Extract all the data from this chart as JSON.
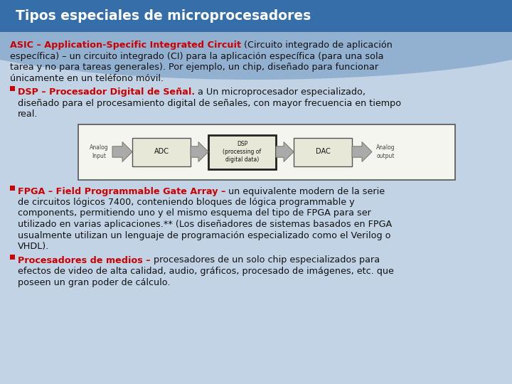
{
  "title": "Tipos especiales de microprocesadores",
  "title_bg": "#1b5ea7",
  "body_bg": "#ccdaea",
  "wave_color": "#5b8fc4",
  "text_dark": "#111111",
  "text_red": "#cc0000",
  "fs_title": 13.5,
  "fs_body": 9.2,
  "fs_diag": 7.0,
  "p1_bold": "ASIC – Application-Specific Integrated Circuit",
  "p1_lines": [
    [
      "b",
      "ASIC – Application-Specific Integrated Circuit",
      " (Circuito integrado de aplicación"
    ],
    [
      "n",
      "específica) – un circuito integrado (CI) para la aplicación específica (para una sola"
    ],
    [
      "n",
      "tarea y no para tareas generales). Por ejemplo, un chip, diseñado para funcionar"
    ],
    [
      "n",
      "únicamente en un teléfono móvil."
    ]
  ],
  "p2_lines": [
    [
      "b",
      "DSP – Procesador Digital de Señal.",
      " a Un microprocesador especializado,"
    ],
    [
      "n",
      "diseñado para el procesamiento digital de señales, con mayor frecuencia en tiempo"
    ],
    [
      "n",
      "real."
    ]
  ],
  "p3_lines": [
    [
      "b",
      "FPGA – Field Programmable Gate Array –",
      " un equivalente modern de la serie"
    ],
    [
      "n",
      "de circuitos lógicos 7400, conteniendo bloques de lógica programmable y"
    ],
    [
      "n",
      "components, permitiendo uno y el mismo esquema del tipo de FPGA para ser"
    ],
    [
      "n",
      "utilizado en varias aplicaciones.** (Los diseñadores de sistemas basados en FPGA"
    ],
    [
      "n",
      "usualmente utilizan un lenguaje de programación especializado como el Verilog o"
    ],
    [
      "n",
      "VHDL)."
    ]
  ],
  "p4_lines": [
    [
      "b",
      "Procesadores de medios –",
      " procesadores de un solo chip especializados para"
    ],
    [
      "n",
      "efectos de video de alta calidad, audio, gráficos, procesado de imágenes, etc. que"
    ],
    [
      "n",
      "poseen un gran poder de cálculo."
    ]
  ],
  "diag_box_bg": "#e8e8d8",
  "diag_border": "#555555",
  "diag_arrow_color": "#999988"
}
